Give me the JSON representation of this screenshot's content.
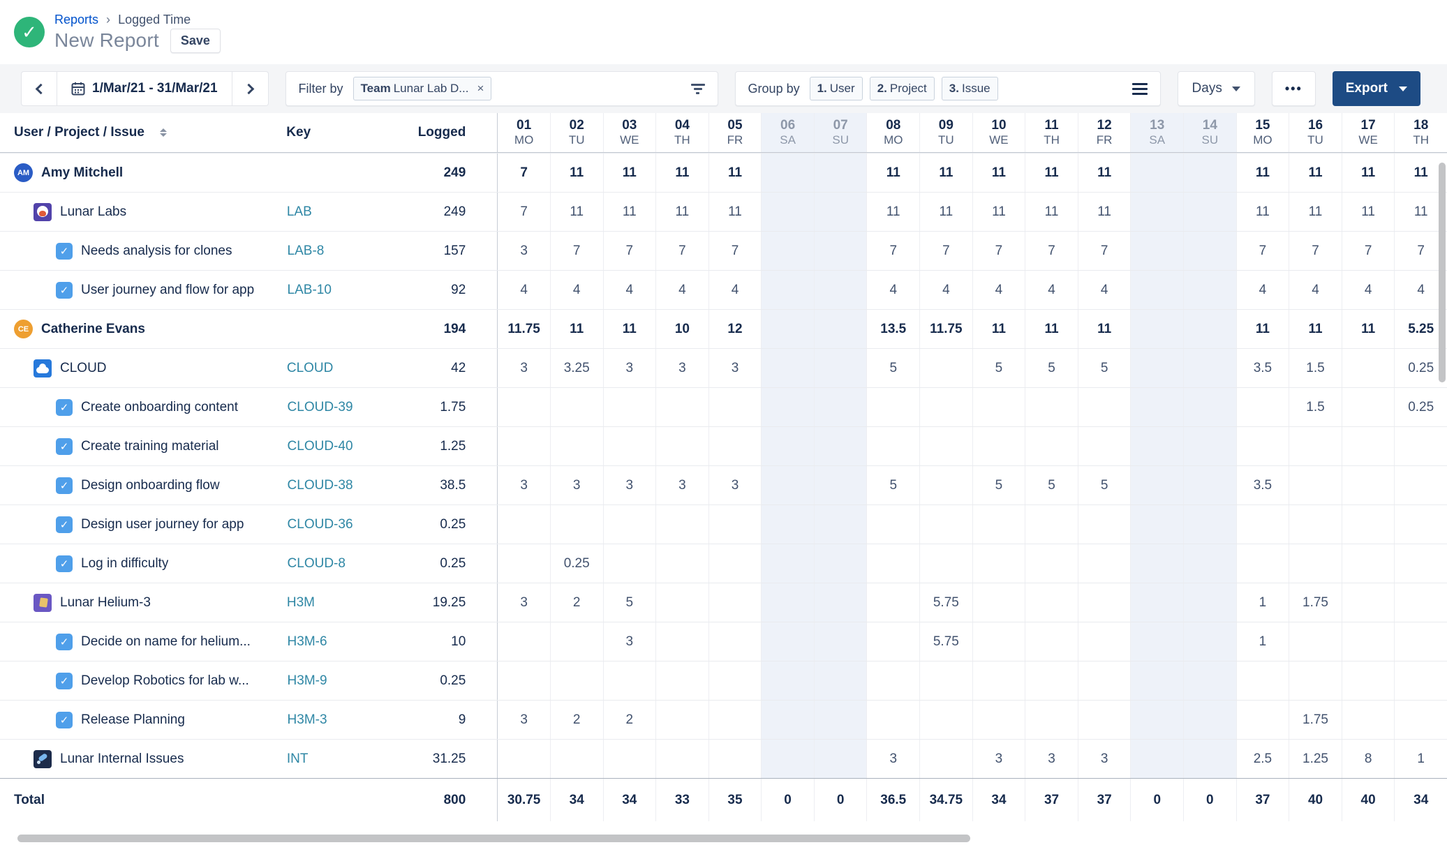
{
  "header": {
    "breadcrumb": {
      "reports": "Reports",
      "separator": "›",
      "current": "Logged Time"
    },
    "title": "New Report",
    "save_label": "Save",
    "status_check": "✓"
  },
  "toolbar": {
    "date_range": "1/Mar/21 - 31/Mar/21",
    "filter_label": "Filter by",
    "filter_chip": {
      "bold": "Team",
      "rest": " Lunar Lab D...",
      "remove": "×"
    },
    "group_label": "Group by",
    "group_chips": [
      {
        "num": "1.",
        "label": "User"
      },
      {
        "num": "2.",
        "label": "Project"
      },
      {
        "num": "3.",
        "label": "Issue"
      }
    ],
    "unit_label": "Days",
    "more_label": "•••",
    "export_label": "Export"
  },
  "table": {
    "name_header": "User / Project / Issue",
    "key_header": "Key",
    "logged_header": "Logged",
    "days": [
      {
        "num": "01",
        "dow": "MO",
        "weekend": false
      },
      {
        "num": "02",
        "dow": "TU",
        "weekend": false
      },
      {
        "num": "03",
        "dow": "WE",
        "weekend": false
      },
      {
        "num": "04",
        "dow": "TH",
        "weekend": false
      },
      {
        "num": "05",
        "dow": "FR",
        "weekend": false
      },
      {
        "num": "06",
        "dow": "SA",
        "weekend": true
      },
      {
        "num": "07",
        "dow": "SU",
        "weekend": true
      },
      {
        "num": "08",
        "dow": "MO",
        "weekend": false
      },
      {
        "num": "09",
        "dow": "TU",
        "weekend": false
      },
      {
        "num": "10",
        "dow": "WE",
        "weekend": false
      },
      {
        "num": "11",
        "dow": "TH",
        "weekend": false
      },
      {
        "num": "12",
        "dow": "FR",
        "weekend": false
      },
      {
        "num": "13",
        "dow": "SA",
        "weekend": true
      },
      {
        "num": "14",
        "dow": "SU",
        "weekend": true
      },
      {
        "num": "15",
        "dow": "MO",
        "weekend": false
      },
      {
        "num": "16",
        "dow": "TU",
        "weekend": false
      },
      {
        "num": "17",
        "dow": "WE",
        "weekend": false
      },
      {
        "num": "18",
        "dow": "TH",
        "weekend": false
      }
    ],
    "rows": [
      {
        "type": "user",
        "name": "Amy Mitchell",
        "initials": "AM",
        "avatar_color": "#2a5cc5",
        "key": "",
        "logged": "249",
        "cells": [
          "7",
          "11",
          "11",
          "11",
          "11",
          "",
          "",
          "11",
          "11",
          "11",
          "11",
          "11",
          "",
          "",
          "11",
          "11",
          "11",
          "11"
        ]
      },
      {
        "type": "project",
        "icon": "lab",
        "name": "Lunar Labs",
        "key": "LAB",
        "logged": "249",
        "cells": [
          "7",
          "11",
          "11",
          "11",
          "11",
          "",
          "",
          "11",
          "11",
          "11",
          "11",
          "11",
          "",
          "",
          "11",
          "11",
          "11",
          "11"
        ]
      },
      {
        "type": "issue",
        "name": "Needs analysis for clones",
        "key": "LAB-8",
        "logged": "157",
        "cells": [
          "3",
          "7",
          "7",
          "7",
          "7",
          "",
          "",
          "7",
          "7",
          "7",
          "7",
          "7",
          "",
          "",
          "7",
          "7",
          "7",
          "7"
        ]
      },
      {
        "type": "issue",
        "name": "User journey and flow for app",
        "key": "LAB-10",
        "logged": "92",
        "cells": [
          "4",
          "4",
          "4",
          "4",
          "4",
          "",
          "",
          "4",
          "4",
          "4",
          "4",
          "4",
          "",
          "",
          "4",
          "4",
          "4",
          "4"
        ]
      },
      {
        "type": "user",
        "name": "Catherine Evans",
        "initials": "CE",
        "avatar_color": "#ee9f31",
        "key": "",
        "logged": "194",
        "cells": [
          "11.75",
          "11",
          "11",
          "10",
          "12",
          "",
          "",
          "13.5",
          "11.75",
          "11",
          "11",
          "11",
          "",
          "",
          "11",
          "11",
          "11",
          "5.25"
        ]
      },
      {
        "type": "project",
        "icon": "cloud",
        "name": "CLOUD",
        "key": "CLOUD",
        "logged": "42",
        "cells": [
          "3",
          "3.25",
          "3",
          "3",
          "3",
          "",
          "",
          "5",
          "",
          "5",
          "5",
          "5",
          "",
          "",
          "3.5",
          "1.5",
          "",
          "0.25"
        ]
      },
      {
        "type": "issue",
        "name": "Create onboarding content",
        "key": "CLOUD-39",
        "logged": "1.75",
        "cells": [
          "",
          "",
          "",
          "",
          "",
          "",
          "",
          "",
          "",
          "",
          "",
          "",
          "",
          "",
          "",
          "1.5",
          "",
          "0.25"
        ]
      },
      {
        "type": "issue",
        "name": "Create training material",
        "key": "CLOUD-40",
        "logged": "1.25",
        "cells": [
          "",
          "",
          "",
          "",
          "",
          "",
          "",
          "",
          "",
          "",
          "",
          "",
          "",
          "",
          "",
          "",
          "",
          ""
        ]
      },
      {
        "type": "issue",
        "name": "Design onboarding flow",
        "key": "CLOUD-38",
        "logged": "38.5",
        "cells": [
          "3",
          "3",
          "3",
          "3",
          "3",
          "",
          "",
          "5",
          "",
          "5",
          "5",
          "5",
          "",
          "",
          "3.5",
          "",
          "",
          ""
        ]
      },
      {
        "type": "issue",
        "name": "Design user journey for app",
        "key": "CLOUD-36",
        "logged": "0.25",
        "cells": [
          "",
          "",
          "",
          "",
          "",
          "",
          "",
          "",
          "",
          "",
          "",
          "",
          "",
          "",
          "",
          "",
          "",
          ""
        ]
      },
      {
        "type": "issue",
        "name": "Log in difficulty",
        "key": "CLOUD-8",
        "logged": "0.25",
        "cells": [
          "",
          "0.25",
          "",
          "",
          "",
          "",
          "",
          "",
          "",
          "",
          "",
          "",
          "",
          "",
          "",
          "",
          "",
          ""
        ]
      },
      {
        "type": "project",
        "icon": "h3m",
        "name": "Lunar Helium-3",
        "key": "H3M",
        "logged": "19.25",
        "cells": [
          "3",
          "2",
          "5",
          "",
          "",
          "",
          "",
          "",
          "5.75",
          "",
          "",
          "",
          "",
          "",
          "1",
          "1.75",
          "",
          ""
        ]
      },
      {
        "type": "issue",
        "name": "Decide on name for helium...",
        "key": "H3M-6",
        "logged": "10",
        "cells": [
          "",
          "",
          "3",
          "",
          "",
          "",
          "",
          "",
          "5.75",
          "",
          "",
          "",
          "",
          "",
          "1",
          "",
          "",
          ""
        ]
      },
      {
        "type": "issue",
        "name": "Develop Robotics for lab w...",
        "key": "H3M-9",
        "logged": "0.25",
        "cells": [
          "",
          "",
          "",
          "",
          "",
          "",
          "",
          "",
          "",
          "",
          "",
          "",
          "",
          "",
          "",
          "",
          "",
          ""
        ]
      },
      {
        "type": "issue",
        "name": "Release Planning",
        "key": "H3M-3",
        "logged": "9",
        "cells": [
          "3",
          "2",
          "2",
          "",
          "",
          "",
          "",
          "",
          "",
          "",
          "",
          "",
          "",
          "",
          "",
          "1.75",
          "",
          ""
        ]
      },
      {
        "type": "project",
        "icon": "int",
        "name": "Lunar Internal Issues",
        "key": "INT",
        "logged": "31.25",
        "cells": [
          "",
          "",
          "",
          "",
          "",
          "",
          "",
          "3",
          "",
          "3",
          "3",
          "3",
          "",
          "",
          "2.5",
          "1.25",
          "8",
          "1"
        ]
      }
    ],
    "total": {
      "label": "Total",
      "logged": "800",
      "cells": [
        "30.75",
        "34",
        "34",
        "33",
        "35",
        "0",
        "0",
        "36.5",
        "34.75",
        "34",
        "37",
        "37",
        "0",
        "0",
        "37",
        "40",
        "40",
        "34"
      ]
    }
  },
  "colors": {
    "accent_export": "#1d4b84",
    "link": "#0052cc",
    "key_link": "#2f87a5",
    "weekend_bg": "#eef2f9",
    "status_green": "#2eb579",
    "checkbox_blue": "#4f9fea"
  }
}
